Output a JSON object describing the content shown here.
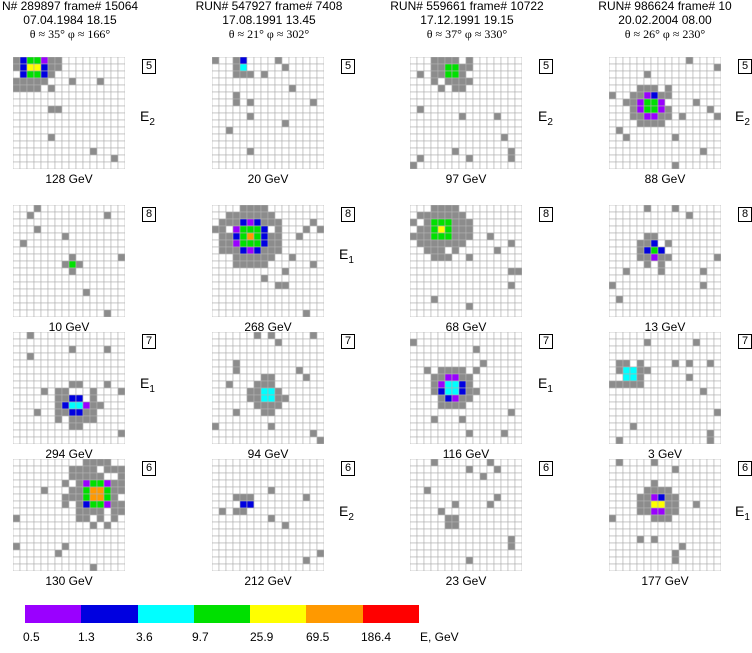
{
  "headers": [
    {
      "run": "N# 289897",
      "frame": "frame# 15064",
      "date": "07.04.1984",
      "time": "18.15",
      "angles": "θ ≈ 35°   φ ≈ 166°"
    },
    {
      "run": "RUN# 547927",
      "frame": "frame# 7408",
      "date": "17.08.1991",
      "time": "13.45",
      "angles": "θ ≈ 21°   φ ≈ 302°"
    },
    {
      "run": "RUN# 559661",
      "frame": "frame# 10722",
      "date": "17.12.1991",
      "time": "19.15",
      "angles": "θ ≈ 37°   φ ≈ 330°"
    },
    {
      "run": "RUN# 986624",
      "frame": "frame# 10",
      "date": "20.02.2004",
      "time": "08.00",
      "angles": "θ ≈ 26°   φ ≈ 230°"
    }
  ],
  "rows": [
    {
      "detector": "5",
      "energies": [
        "128 GeV",
        "20 GeV",
        "97 GeV",
        "88 GeV"
      ]
    },
    {
      "detector": "8",
      "energies": [
        "10 GeV",
        "268 GeV",
        "68 GeV",
        "13 GeV"
      ]
    },
    {
      "detector": "7",
      "energies": [
        "294 GeV",
        "94 GeV",
        "116 GeV",
        "3 GeV"
      ]
    },
    {
      "detector": "6",
      "energies": [
        "130 GeV",
        "212 GeV",
        "23 GeV",
        "177 GeV"
      ]
    }
  ],
  "elabels": {
    "e2": "E",
    "e2sub": "2",
    "e1": "E",
    "e1sub": "1"
  },
  "legend": {
    "colors": [
      "#9a00ff",
      "#0000e0",
      "#00ffff",
      "#00e000",
      "#ffff00",
      "#ff9900",
      "#ff0000"
    ],
    "ticks": [
      "0.5",
      "1.3",
      "3.6",
      "9.7",
      "25.9",
      "69.5",
      "186.4"
    ],
    "unit": "E, GeV"
  }
}
